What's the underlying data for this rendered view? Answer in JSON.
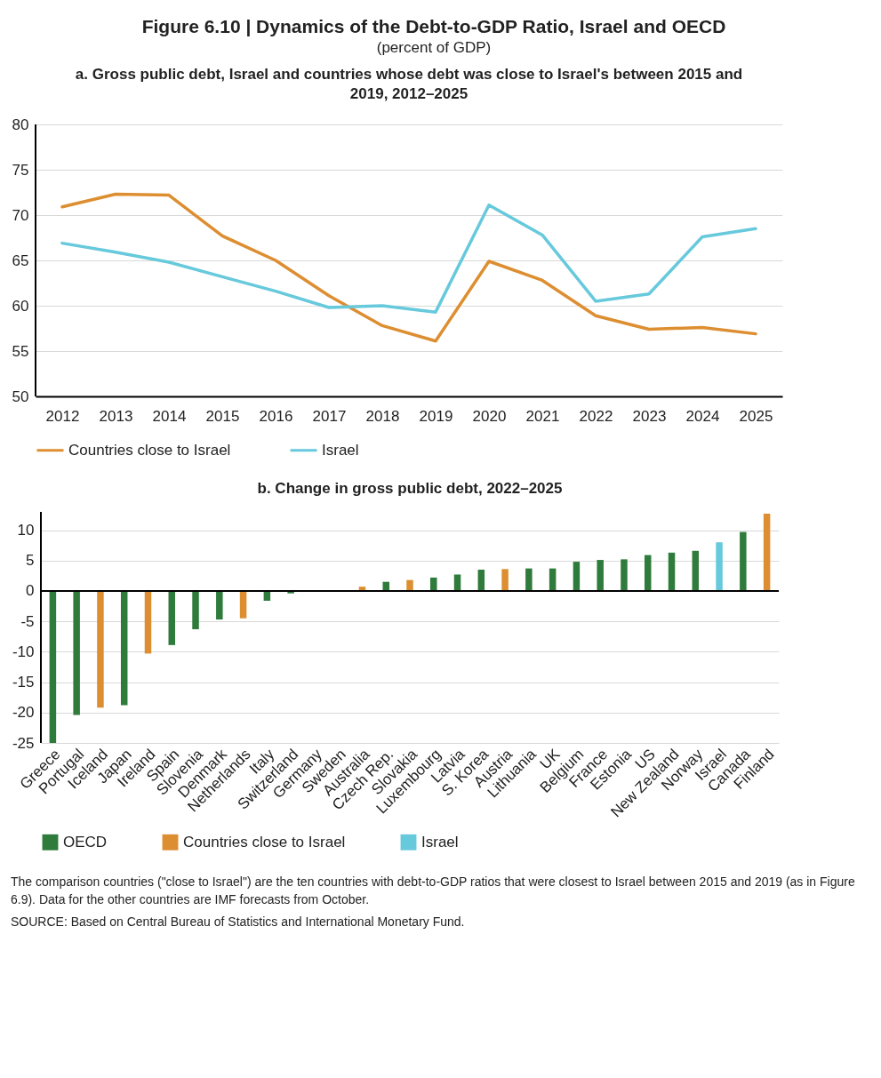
{
  "chart_data": [
    {
      "type": "other",
      "title": "Figure 6.10 | Dynamics of the Debt-to-GDP Ratio, Israel and OECD",
      "subtitle": "(percent of GDP)"
    },
    {
      "type": "line",
      "title": "a. Gross public debt, Israel and countries whose debt was close to Israel's between 2015 and 2019, 2012–2025",
      "categories": [
        "2012",
        "2013",
        "2014",
        "2015",
        "2016",
        "2017",
        "2018",
        "2019",
        "2020",
        "2021",
        "2022",
        "2023",
        "2024",
        "2025"
      ],
      "series": [
        {
          "name": "Countries close to Israel",
          "color": "#dd8e31",
          "values": [
            70.9,
            72.3,
            72.2,
            67.7,
            65.0,
            61.1,
            57.8,
            56.1,
            64.9,
            62.8,
            58.9,
            57.4,
            57.6,
            56.9
          ]
        },
        {
          "name": "Israel",
          "color": "#67c9dc",
          "values": [
            66.9,
            65.9,
            64.8,
            63.2,
            61.6,
            59.8,
            60.0,
            59.3,
            71.1,
            67.8,
            60.5,
            61.3,
            67.6,
            68.5
          ]
        }
      ],
      "ylim": [
        50,
        80
      ],
      "yticks": [
        50,
        55,
        60,
        65,
        70,
        75,
        80
      ],
      "grid": "y",
      "legend": "bottom"
    },
    {
      "type": "bar",
      "title": "b. Change in gross public debt, 2022–2025",
      "stacked": true,
      "categories": [
        "Greece",
        "Portugal",
        "Iceland",
        "Japan",
        "Ireland",
        "Spain",
        "Slovenia",
        "Denmark",
        "Netherlands",
        "Italy",
        "Switzerland",
        "Germany",
        "Sweden",
        "Australia",
        "Czech Rep.",
        "Slovakia",
        "Luxembourg",
        "Latvia",
        "S. Korea",
        "Austria",
        "Lithuania",
        "UK",
        "Belgium",
        "France",
        "Estonia",
        "US",
        "New Zealand",
        "Norway",
        "Israel",
        "Canada",
        "Finland"
      ],
      "series": [
        {
          "name": "OECD",
          "color": "#2e7b3b",
          "values": [
            -25,
            -20.4,
            null,
            -18.8,
            null,
            -8.9,
            -6.3,
            -4.7,
            null,
            -1.6,
            -0.4,
            0,
            0,
            null,
            1.5,
            null,
            2.2,
            2.7,
            3.5,
            null,
            3.7,
            3.7,
            4.8,
            5.1,
            5.2,
            5.9,
            6.3,
            6.6,
            null,
            9.7,
            null
          ]
        },
        {
          "name": "Countries close to Israel",
          "color": "#dd8e31",
          "values": [
            null,
            null,
            -19.2,
            null,
            -10.3,
            null,
            null,
            null,
            -4.5,
            null,
            null,
            null,
            null,
            0.7,
            null,
            1.8,
            null,
            null,
            null,
            3.6,
            null,
            null,
            null,
            null,
            null,
            null,
            null,
            null,
            null,
            null,
            12.7
          ]
        },
        {
          "name": "Israel",
          "color": "#67c9dc",
          "values": [
            null,
            null,
            null,
            null,
            null,
            null,
            null,
            null,
            null,
            null,
            null,
            null,
            null,
            null,
            null,
            null,
            null,
            null,
            null,
            null,
            null,
            null,
            null,
            null,
            null,
            null,
            null,
            null,
            8.0,
            null,
            null
          ]
        }
      ],
      "ylim": [
        -25,
        13
      ],
      "yticks": [
        -25,
        -20,
        -15,
        -10,
        -5,
        0,
        5,
        10
      ],
      "grid": "y",
      "legend": "bottom",
      "annotations": [
        "The comparison countries (\"close to Israel\") are the ten countries with debt-to-GDP ratios that were closest to Israel between 2015 and 2019 (as in Figure 6.9). Data for the other countries are IMF forecasts from October.",
        "SOURCE: Based on Central Bureau of Statistics and International Monetary Fund."
      ]
    }
  ]
}
